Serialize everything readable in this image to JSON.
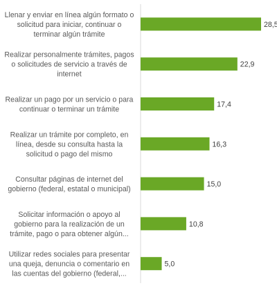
{
  "chart_data": {
    "type": "bar",
    "orientation": "horizontal",
    "title": "",
    "xlabel": "",
    "ylabel": "",
    "xlim": [
      0,
      30
    ],
    "grid": false,
    "legend": "none",
    "bar_color": "#6aa826",
    "categories": [
      [
        "Llenar y enviar en línea algún formato o",
        "solicitud para iniciar, continuar o",
        "terminar algún trámite"
      ],
      [
        "Realizar personalmente trámites, pagos",
        "o solicitudes de servicio a través de",
        "internet"
      ],
      [
        "Realizar un pago por un servicio o para",
        "continuar o terminar un trámite"
      ],
      [
        "Realizar un trámite por completo, en",
        "línea, desde su consulta hasta la",
        "solicitud o pago del mismo"
      ],
      [
        "Consultar páginas de internet del",
        "gobierno (federal, estatal o municipal)"
      ],
      [
        "Solicitar información o apoyo al",
        "gobierno para la realización de un",
        "trámite, pago o para obtener algún..."
      ],
      [
        "Utilizar redes sociales para presentar",
        "una queja, denuncia o comentario en",
        "las cuentas del gobierno (federal,..."
      ]
    ],
    "values": [
      28.5,
      22.9,
      17.4,
      16.3,
      15.0,
      10.8,
      5.0
    ],
    "value_labels": [
      "28,5",
      "22,9",
      "17,4",
      "16,3",
      "15,0",
      "10,8",
      "5,0"
    ]
  }
}
